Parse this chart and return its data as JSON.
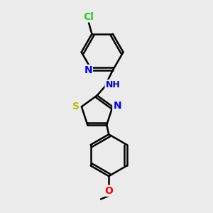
{
  "background_color": "#ebebeb",
  "bond_color": "#000000",
  "line_width": 1.8,
  "figsize": [
    3.0,
    3.0
  ],
  "dpi": 100,
  "xlim": [
    0,
    10
  ],
  "ylim": [
    0,
    10
  ],
  "colors": {
    "Cl": "#22cc22",
    "N": "#0000ff",
    "NH": "#0000cc",
    "S": "#bbbb00",
    "O": "#ff0000",
    "bond": "#000000"
  }
}
